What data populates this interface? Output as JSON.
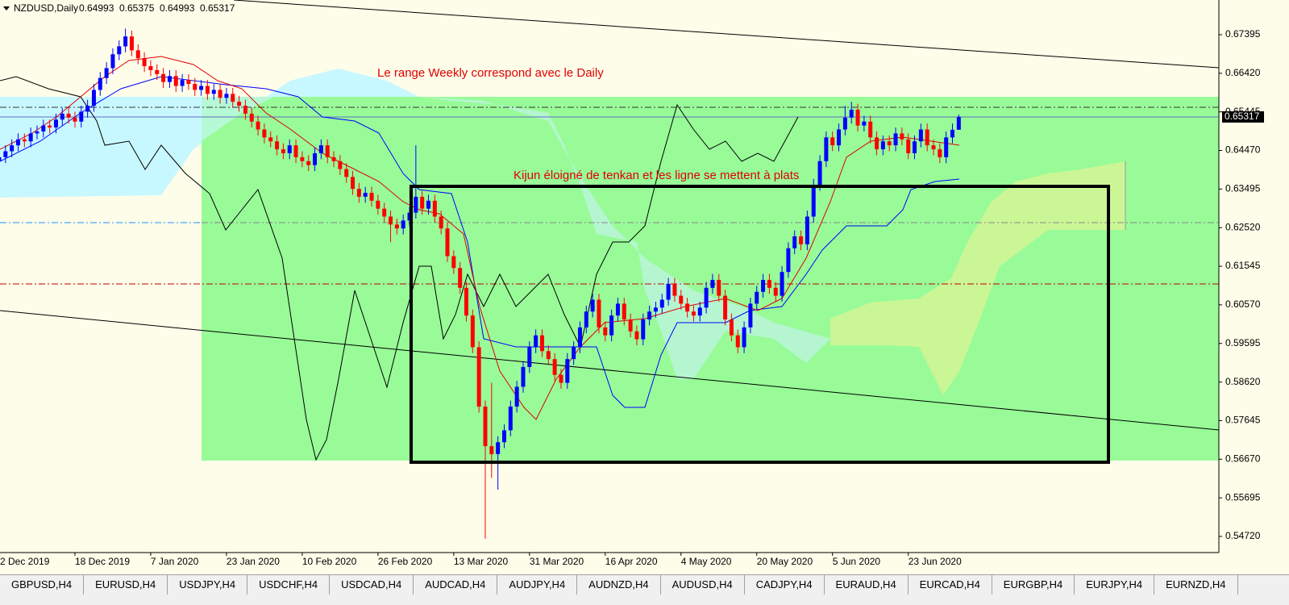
{
  "chart_data": {
    "type": "candlestick",
    "title": "NZDUSD,Daily",
    "annotations": [
      "Le range Weekly correspond avec le Daily",
      "Kijun éloigné de tenkan et les ligne se mettent à plats"
    ],
    "up_color": "#0000ff",
    "down_color": "#ff0000",
    "ylim": [
      0.54312,
      0.68271
    ],
    "yticks": [
      0.67395,
      {
        "value": 0.6642,
        "label": "0.66420"
      },
      0.65445,
      {
        "value": 0.6447,
        "label": "0.64470"
      },
      0.63495,
      {
        "value": 0.6252,
        "label": "0.62520"
      },
      0.61545,
      {
        "value": 0.6057,
        "label": "0.60570"
      },
      0.59595,
      {
        "value": 0.5862,
        "label": "0.58620"
      },
      0.57645,
      {
        "value": 0.5667,
        "label": "0.56670"
      },
      0.55695,
      {
        "value": 0.5472,
        "label": "0.54720"
      }
    ],
    "xlim": [
      0.13,
      193.2
    ],
    "xticks": [
      {
        "value": 0,
        "label": "2 Dec 2019"
      },
      {
        "value": 12,
        "label": "18 Dec 2019"
      },
      {
        "value": 24,
        "label": "7 Jan 2020"
      },
      {
        "value": 36,
        "label": "23 Jan 2020"
      },
      {
        "value": 48,
        "label": "10 Feb 2020"
      },
      {
        "value": 60,
        "label": "26 Feb 2020"
      },
      {
        "value": 72,
        "label": "13 Mar 2020"
      },
      {
        "value": 84,
        "label": "31 Mar 2020"
      },
      {
        "value": 96,
        "label": "16 Apr 2020"
      },
      {
        "value": 108,
        "label": "4 May 2020"
      },
      {
        "value": 120,
        "label": "20 May 2020"
      },
      {
        "value": 132,
        "label": "5 Jun 2020"
      },
      {
        "value": 144,
        "label": "23 Jun 2020"
      }
    ],
    "ohlc": [
      [
        0.642,
        0.6445,
        0.6405,
        0.643
      ],
      [
        0.643,
        0.646,
        0.6415,
        0.6445
      ],
      [
        0.6445,
        0.6475,
        0.643,
        0.646
      ],
      [
        0.646,
        0.649,
        0.6445,
        0.6475
      ],
      [
        0.6475,
        0.649,
        0.6455,
        0.647
      ],
      [
        0.647,
        0.6505,
        0.6455,
        0.649
      ],
      [
        0.649,
        0.651,
        0.6475,
        0.6495
      ],
      [
        0.6495,
        0.6525,
        0.648,
        0.651
      ],
      [
        0.651,
        0.6525,
        0.649,
        0.6505
      ],
      [
        0.6505,
        0.654,
        0.649,
        0.6525
      ],
      [
        0.6525,
        0.6555,
        0.651,
        0.654
      ],
      [
        0.654,
        0.6555,
        0.6515,
        0.653
      ],
      [
        0.653,
        0.6545,
        0.6505,
        0.652
      ],
      [
        0.652,
        0.656,
        0.6505,
        0.6545
      ],
      [
        0.6545,
        0.6575,
        0.653,
        0.656
      ],
      [
        0.656,
        0.6615,
        0.6545,
        0.66
      ],
      [
        0.66,
        0.6645,
        0.6585,
        0.663
      ],
      [
        0.663,
        0.667,
        0.6615,
        0.6655
      ],
      [
        0.6655,
        0.6705,
        0.664,
        0.669
      ],
      [
        0.669,
        0.6725,
        0.6675,
        0.671
      ],
      [
        0.671,
        0.6755,
        0.6695,
        0.6735
      ],
      [
        0.6735,
        0.675,
        0.6685,
        0.67
      ],
      [
        0.67,
        0.6715,
        0.6665,
        0.668
      ],
      [
        0.668,
        0.6695,
        0.6645,
        0.666
      ],
      [
        0.666,
        0.6675,
        0.6635,
        0.665
      ],
      [
        0.665,
        0.6665,
        0.6625,
        0.664
      ],
      [
        0.664,
        0.6655,
        0.6605,
        0.662
      ],
      [
        0.662,
        0.665,
        0.6605,
        0.6635
      ],
      [
        0.6635,
        0.665,
        0.6595,
        0.661
      ],
      [
        0.661,
        0.664,
        0.6595,
        0.6625
      ],
      [
        0.6625,
        0.664,
        0.66,
        0.6615
      ],
      [
        0.6615,
        0.663,
        0.6585,
        0.66
      ],
      [
        0.66,
        0.6625,
        0.6585,
        0.661
      ],
      [
        0.661,
        0.6625,
        0.6575,
        0.659
      ],
      [
        0.659,
        0.6615,
        0.6575,
        0.66
      ],
      [
        0.66,
        0.6615,
        0.6565,
        0.658
      ],
      [
        0.658,
        0.6605,
        0.6565,
        0.659
      ],
      [
        0.659,
        0.6605,
        0.6555,
        0.657
      ],
      [
        0.657,
        0.6585,
        0.6545,
        0.656
      ],
      [
        0.656,
        0.6575,
        0.6525,
        0.654
      ],
      [
        0.654,
        0.6555,
        0.6505,
        0.652
      ],
      [
        0.652,
        0.6535,
        0.6485,
        0.65
      ],
      [
        0.65,
        0.6515,
        0.6465,
        0.648
      ],
      [
        0.648,
        0.6495,
        0.6455,
        0.647
      ],
      [
        0.647,
        0.6485,
        0.6435,
        0.645
      ],
      [
        0.645,
        0.6465,
        0.6425,
        0.644
      ],
      [
        0.644,
        0.6475,
        0.6425,
        0.646
      ],
      [
        0.646,
        0.6475,
        0.6415,
        0.643
      ],
      [
        0.643,
        0.6445,
        0.6405,
        0.642
      ],
      [
        0.642,
        0.6435,
        0.6395,
        0.641
      ],
      [
        0.641,
        0.6455,
        0.6395,
        0.644
      ],
      [
        0.644,
        0.6475,
        0.6425,
        0.646
      ],
      [
        0.646,
        0.6475,
        0.6415,
        0.643
      ],
      [
        0.643,
        0.6445,
        0.6405,
        0.642
      ],
      [
        0.642,
        0.6435,
        0.6385,
        0.64
      ],
      [
        0.64,
        0.6415,
        0.6365,
        0.638
      ],
      [
        0.638,
        0.6395,
        0.6335,
        0.635
      ],
      [
        0.635,
        0.6365,
        0.6315,
        0.633
      ],
      [
        0.633,
        0.6355,
        0.6315,
        0.634
      ],
      [
        0.634,
        0.6355,
        0.6305,
        0.632
      ],
      [
        0.632,
        0.6335,
        0.6285,
        0.63
      ],
      [
        0.63,
        0.6315,
        0.6265,
        0.628
      ],
      [
        0.628,
        0.6295,
        0.6215,
        0.626
      ],
      [
        0.626,
        0.6275,
        0.6235,
        0.625
      ],
      [
        0.625,
        0.6285,
        0.6235,
        0.627
      ],
      [
        0.627,
        0.6305,
        0.6255,
        0.629
      ],
      [
        0.629,
        0.646,
        0.6275,
        0.633
      ],
      [
        0.633,
        0.6345,
        0.6285,
        0.63
      ],
      [
        0.63,
        0.6335,
        0.6285,
        0.632
      ],
      [
        0.632,
        0.6335,
        0.6265,
        0.628
      ],
      [
        0.628,
        0.6295,
        0.6235,
        0.625
      ],
      [
        0.625,
        0.6265,
        0.6165,
        0.618
      ],
      [
        0.618,
        0.6195,
        0.6135,
        0.615
      ],
      [
        0.615,
        0.6165,
        0.6085,
        0.61
      ],
      [
        0.61,
        0.6115,
        0.6015,
        0.603
      ],
      [
        0.603,
        0.6045,
        0.5935,
        0.595
      ],
      [
        0.595,
        0.5965,
        0.5785,
        0.58
      ],
      [
        0.58,
        0.5815,
        0.5466,
        0.57
      ],
      [
        0.57,
        0.586,
        0.562,
        0.568
      ],
      [
        0.568,
        0.5725,
        0.559,
        0.571
      ],
      [
        0.571,
        0.5755,
        0.5695,
        0.574
      ],
      [
        0.574,
        0.5815,
        0.5725,
        0.58
      ],
      [
        0.58,
        0.5865,
        0.5785,
        0.585
      ],
      [
        0.585,
        0.5915,
        0.5835,
        0.59
      ],
      [
        0.59,
        0.5965,
        0.5885,
        0.595
      ],
      [
        0.595,
        0.5995,
        0.5935,
        0.598
      ],
      [
        0.598,
        0.5995,
        0.5925,
        0.594
      ],
      [
        0.594,
        0.5955,
        0.5905,
        0.592
      ],
      [
        0.592,
        0.5935,
        0.5865,
        0.588
      ],
      [
        0.588,
        0.5895,
        0.5845,
        0.586
      ],
      [
        0.586,
        0.5935,
        0.5845,
        0.592
      ],
      [
        0.592,
        0.5965,
        0.5905,
        0.595
      ],
      [
        0.595,
        0.6015,
        0.5935,
        0.6
      ],
      [
        0.6,
        0.6055,
        0.5985,
        0.604
      ],
      [
        0.604,
        0.6085,
        0.6025,
        0.607
      ],
      [
        0.607,
        0.6085,
        0.5985,
        0.6
      ],
      [
        0.6,
        0.6015,
        0.5965,
        0.598
      ],
      [
        0.598,
        0.6045,
        0.5965,
        0.603
      ],
      [
        0.603,
        0.6075,
        0.6015,
        0.606
      ],
      [
        0.606,
        0.6075,
        0.6005,
        0.602
      ],
      [
        0.602,
        0.6035,
        0.5975,
        0.599
      ],
      [
        0.599,
        0.6005,
        0.5955,
        0.597
      ],
      [
        0.597,
        0.6035,
        0.5955,
        0.602
      ],
      [
        0.602,
        0.6055,
        0.6005,
        0.604
      ],
      [
        0.604,
        0.6065,
        0.6025,
        0.605
      ],
      [
        0.605,
        0.6085,
        0.6035,
        0.607
      ],
      [
        0.607,
        0.6125,
        0.6055,
        0.611
      ],
      [
        0.611,
        0.6125,
        0.6065,
        0.608
      ],
      [
        0.608,
        0.6095,
        0.6045,
        0.606
      ],
      [
        0.606,
        0.6075,
        0.6025,
        0.604
      ],
      [
        0.604,
        0.6055,
        0.6015,
        0.603
      ],
      [
        0.603,
        0.6065,
        0.6015,
        0.605
      ],
      [
        0.605,
        0.6115,
        0.6035,
        0.61
      ],
      [
        0.61,
        0.6135,
        0.6085,
        0.612
      ],
      [
        0.612,
        0.6135,
        0.6065,
        0.608
      ],
      [
        0.608,
        0.6095,
        0.6005,
        0.602
      ],
      [
        0.602,
        0.6035,
        0.5965,
        0.598
      ],
      [
        0.598,
        0.5995,
        0.5935,
        0.595
      ],
      [
        0.595,
        0.6015,
        0.5935,
        0.6
      ],
      [
        0.6,
        0.6075,
        0.5985,
        0.606
      ],
      [
        0.606,
        0.6105,
        0.6045,
        0.609
      ],
      [
        0.609,
        0.6135,
        0.6075,
        0.612
      ],
      [
        0.612,
        0.6135,
        0.6085,
        0.61
      ],
      [
        0.61,
        0.6115,
        0.6065,
        0.608
      ],
      [
        0.608,
        0.6155,
        0.6065,
        0.614
      ],
      [
        0.614,
        0.6215,
        0.6125,
        0.62
      ],
      [
        0.62,
        0.6245,
        0.6185,
        0.623
      ],
      [
        0.623,
        0.6245,
        0.6195,
        0.621
      ],
      [
        0.621,
        0.6295,
        0.6195,
        0.628
      ],
      [
        0.628,
        0.6375,
        0.6265,
        0.636
      ],
      [
        0.636,
        0.6435,
        0.6345,
        0.642
      ],
      [
        0.642,
        0.6495,
        0.6405,
        0.648
      ],
      [
        0.648,
        0.6495,
        0.6445,
        0.646
      ],
      [
        0.646,
        0.6515,
        0.6445,
        0.65
      ],
      [
        0.65,
        0.656,
        0.6485,
        0.653
      ],
      [
        0.653,
        0.657,
        0.6515,
        0.655
      ],
      [
        0.655,
        0.6565,
        0.6495,
        0.651
      ],
      [
        0.651,
        0.6535,
        0.6495,
        0.652
      ],
      [
        0.652,
        0.6535,
        0.6465,
        0.648
      ],
      [
        0.648,
        0.6495,
        0.6435,
        0.645
      ],
      [
        0.645,
        0.6485,
        0.6435,
        0.647
      ],
      [
        0.647,
        0.6485,
        0.6445,
        0.646
      ],
      [
        0.646,
        0.6505,
        0.6445,
        0.649
      ],
      [
        0.649,
        0.6505,
        0.646,
        0.6475
      ],
      [
        0.6475,
        0.649,
        0.6425,
        0.644
      ],
      [
        0.644,
        0.6485,
        0.6425,
        0.647
      ],
      [
        0.647,
        0.6515,
        0.6455,
        0.65
      ],
      [
        0.65,
        0.6515,
        0.6445,
        0.646
      ],
      [
        0.646,
        0.6475,
        0.6435,
        0.645
      ],
      [
        0.645,
        0.6465,
        0.6415,
        0.643
      ],
      [
        0.643,
        0.6495,
        0.6415,
        0.648
      ],
      [
        0.648,
        0.6515,
        0.6465,
        0.64993
      ],
      [
        0.64993,
        0.65375,
        0.64993,
        0.65317
      ]
    ]
  },
  "tabs": [
    "GBPUSD,H4",
    "EURUSD,H4",
    "USDJPY,H4",
    "USDCHF,H4",
    "USDCAD,H4",
    "AUDCAD,H4",
    "AUDJPY,H4",
    "AUDNZD,H4",
    "AUDUSD,H4",
    "CADJPY,H4",
    "EURAUD,H4",
    "EURCAD,H4",
    "EURGBP,H4",
    "EURJPY,H4",
    "EURNZD,H4"
  ]
}
